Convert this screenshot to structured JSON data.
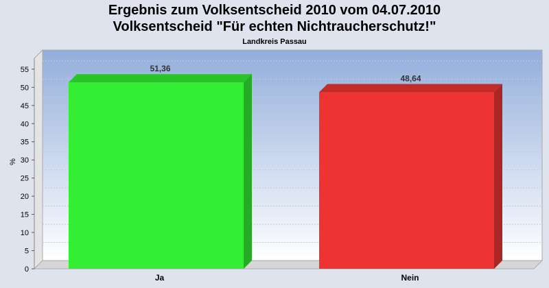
{
  "chart_data": {
    "type": "bar",
    "title": "Ergebnis zum Volksentscheid 2010 vom 04.07.2010",
    "subtitle_line": "Volksentscheid \"Für echten Nichtraucherschutz!\"",
    "region": "Landkreis Passau",
    "ylabel": "%",
    "xlabel": "",
    "ylim": [
      0,
      58
    ],
    "yticks": [
      0,
      5,
      10,
      15,
      20,
      25,
      30,
      35,
      40,
      45,
      50,
      55
    ],
    "categories": [
      "Ja",
      "Nein"
    ],
    "values": [
      51.36,
      48.64
    ],
    "value_labels": [
      "51,36",
      "48,64"
    ],
    "colors": [
      "#33ee33",
      "#ee3333"
    ],
    "grid": true
  }
}
